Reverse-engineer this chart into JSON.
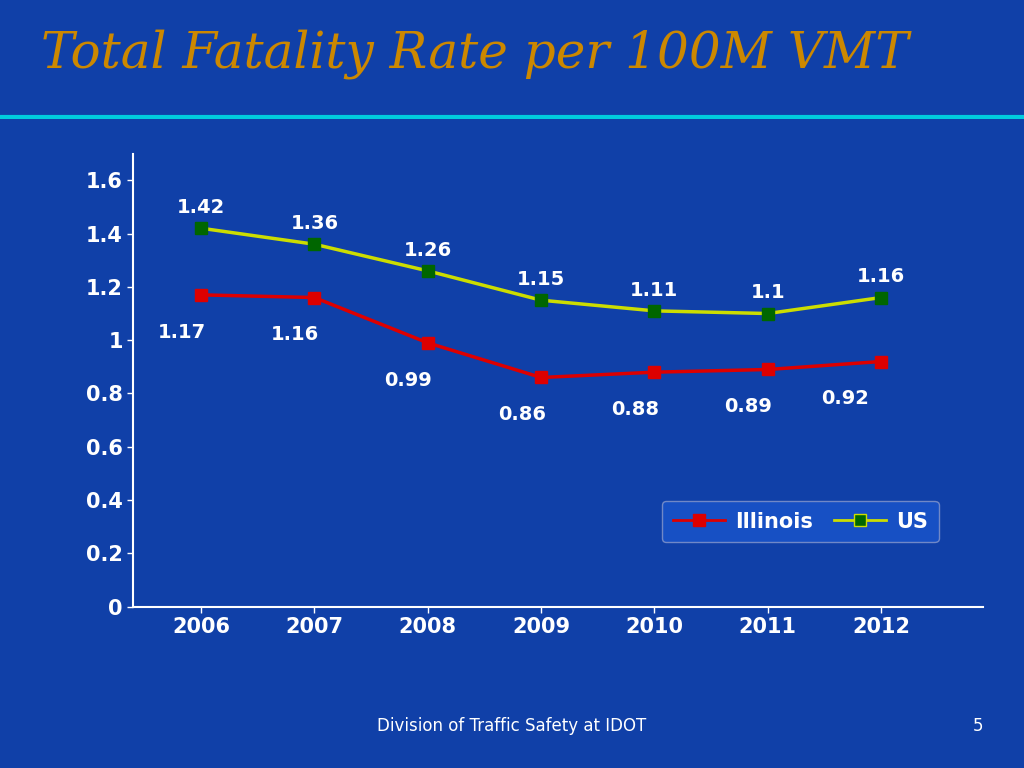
{
  "title": "Total Fatality Rate per 100M VMT",
  "title_color": "#CC8800",
  "title_fontsize": 36,
  "background_color": "#1040A8",
  "header_bg_color": "#050F30",
  "plot_bg_color": "#1040A8",
  "years": [
    2006,
    2007,
    2008,
    2009,
    2010,
    2011,
    2012
  ],
  "illinois_values": [
    1.17,
    1.16,
    0.99,
    0.86,
    0.88,
    0.89,
    0.92
  ],
  "us_values": [
    1.42,
    1.36,
    1.26,
    1.15,
    1.11,
    1.1,
    1.16
  ],
  "illinois_color": "#DD0000",
  "us_marker_color": "#006600",
  "us_line_color": "#CCDD00",
  "ylim": [
    0,
    1.7
  ],
  "yticks": [
    0,
    0.2,
    0.4,
    0.6,
    0.8,
    1.0,
    1.2,
    1.4,
    1.6
  ],
  "annotation_color": "#FFFFFF",
  "annotation_fontsize": 14,
  "axis_label_color": "#FFFFFF",
  "axis_tick_fontsize": 15,
  "footer_text": "Division of Traffic Safety at IDOT",
  "footer_color": "#FFFFFF",
  "page_number": "5",
  "cyan_line_color": "#00CCDD",
  "legend_facecolor": "#1A55CC",
  "legend_edgecolor": "#8899CC"
}
